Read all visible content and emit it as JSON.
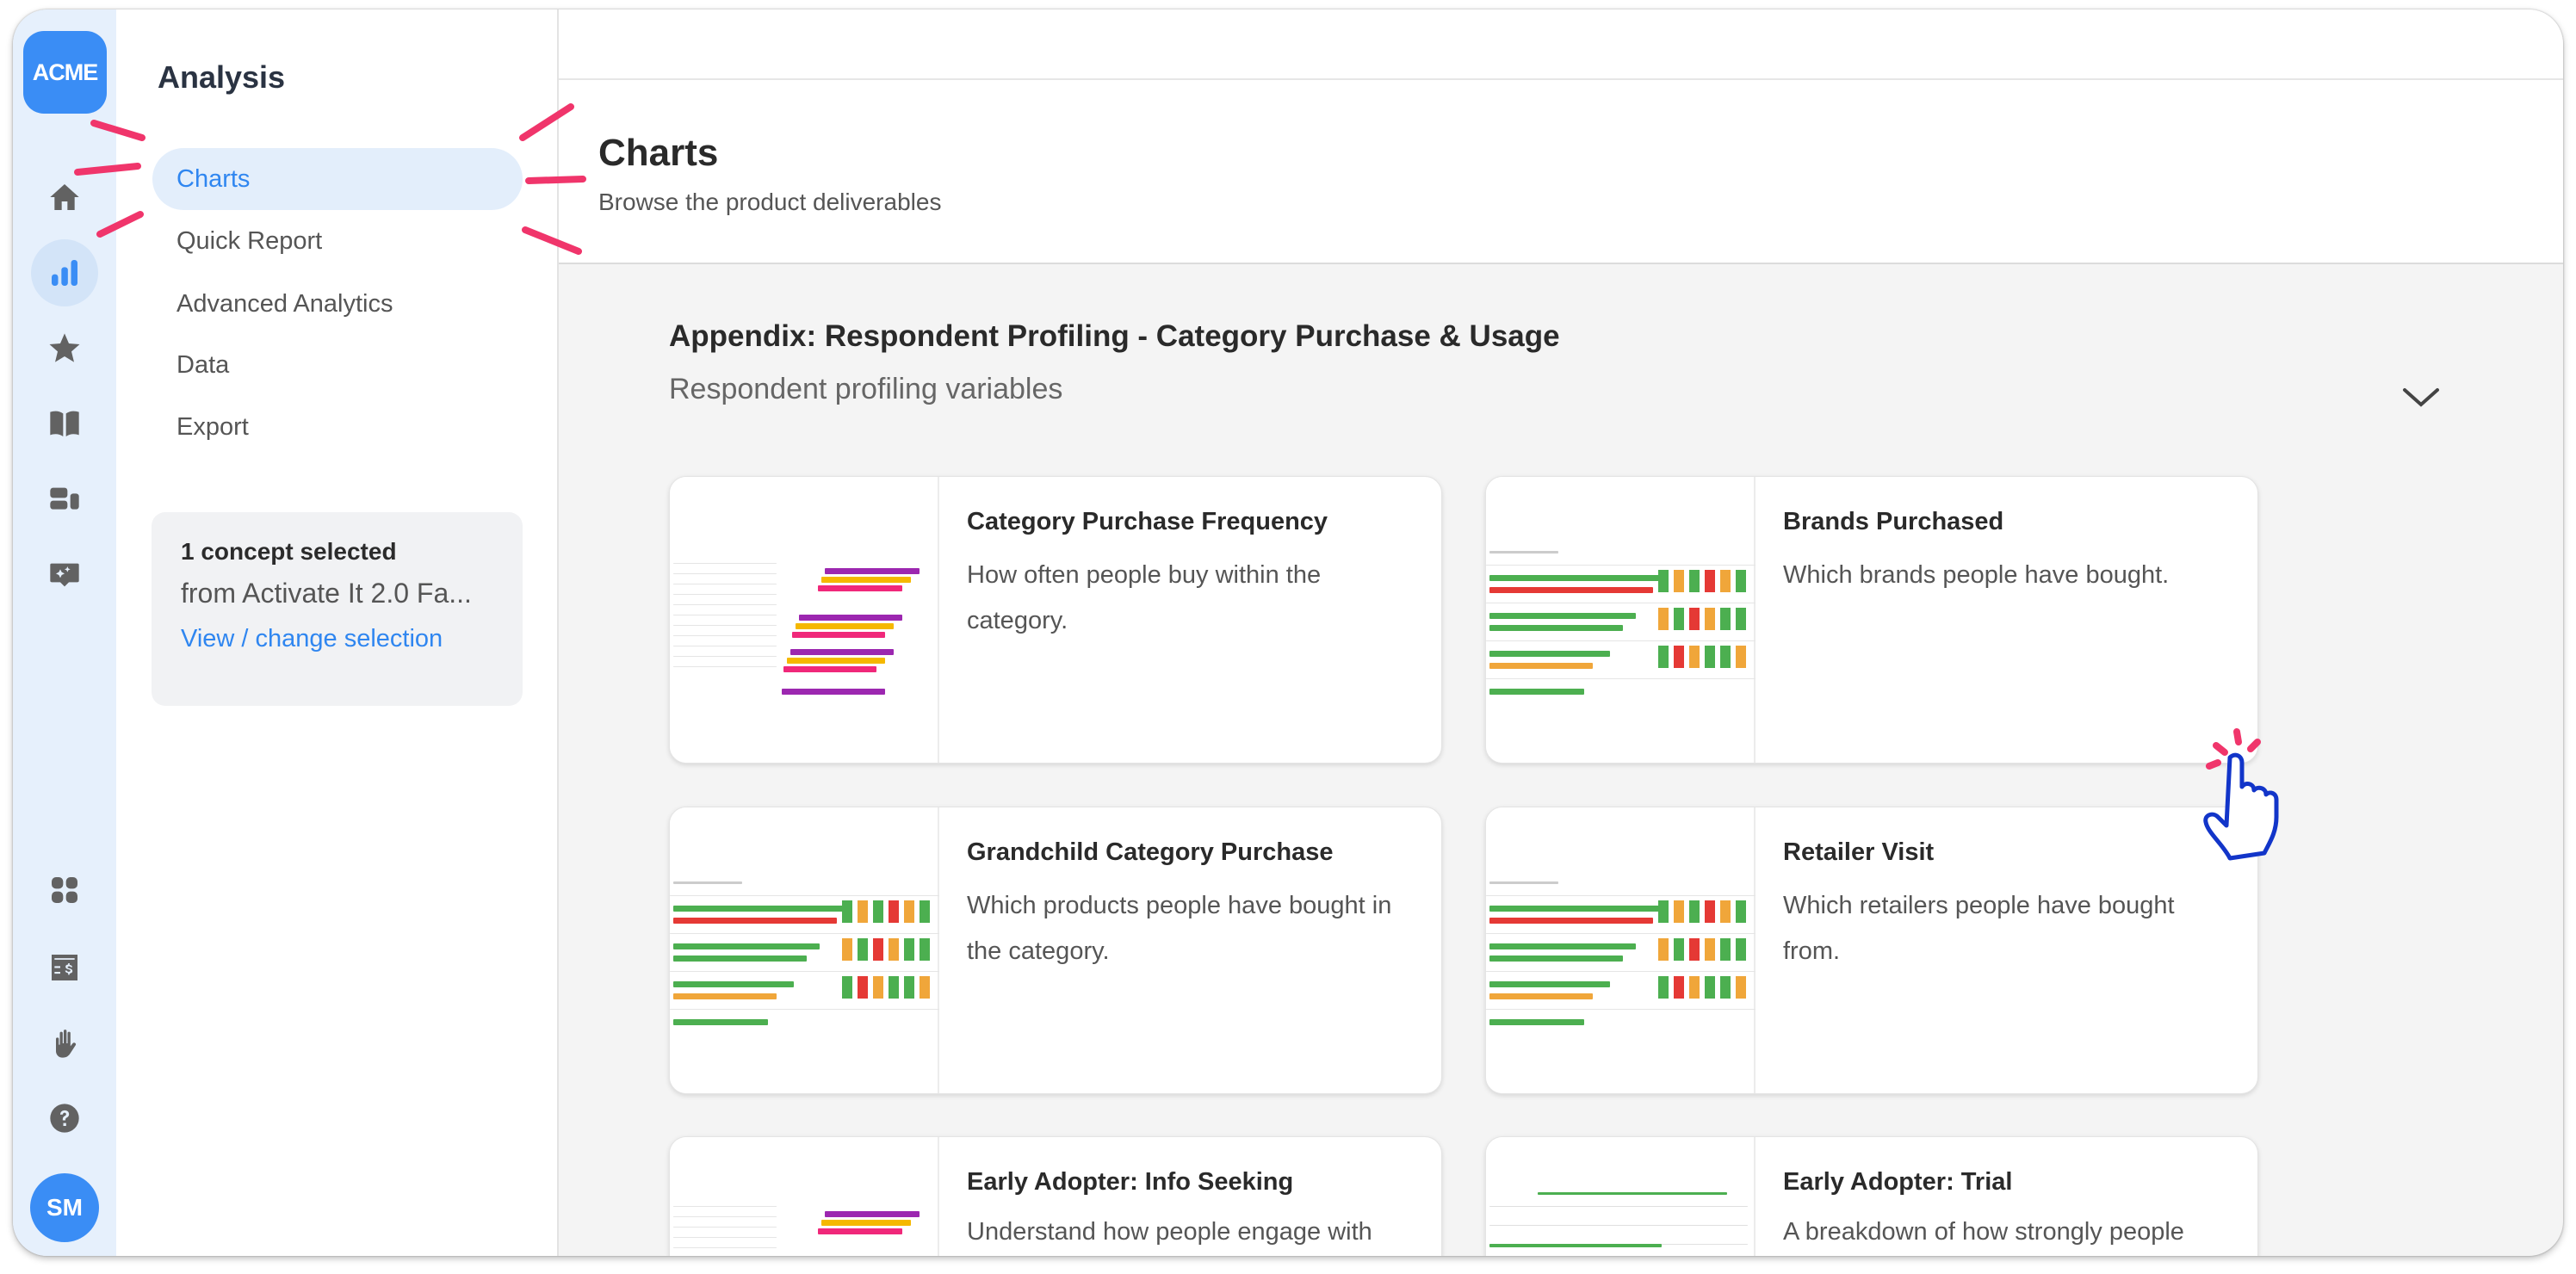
{
  "rail": {
    "logo": "ACME",
    "avatar": "SM",
    "icons": [
      "home-icon",
      "charts-icon",
      "star-icon",
      "book-icon",
      "dashboard-icon",
      "ai-chat-icon"
    ],
    "bottom_icons": [
      "apps-icon",
      "billing-icon",
      "hand-icon",
      "help-icon"
    ]
  },
  "nav": {
    "title": "Analysis",
    "items": [
      {
        "label": "Charts",
        "active": true
      },
      {
        "label": "Quick Report"
      },
      {
        "label": "Advanced Analytics"
      },
      {
        "label": "Data"
      },
      {
        "label": "Export"
      }
    ],
    "concept": {
      "title": "1 concept selected",
      "source": "from Activate It 2.0 Fa...",
      "link": "View / change selection"
    }
  },
  "header": {
    "title": "Charts",
    "subtitle": "Browse the product deliverables"
  },
  "section": {
    "title": "Appendix: Respondent Profiling - Category Purchase & Usage",
    "subtitle": "Respondent profiling variables"
  },
  "cards": [
    {
      "title": "Category Purchase Frequency",
      "desc": "How often people buy within the category.",
      "thumb": "hbars"
    },
    {
      "title": "Brands Purchased",
      "desc": "Which brands people have bought.",
      "thumb": "grid"
    },
    {
      "title": "Grandchild Category Purchase",
      "desc": "Which products people have bought in the category.",
      "thumb": "grid"
    },
    {
      "title": "Retailer Visit",
      "desc": "Which retailers people have bought from.",
      "thumb": "grid"
    },
    {
      "title": "Early Adopter: Info Seeking",
      "desc": "Understand how people engage with",
      "thumb": "hbars"
    },
    {
      "title": "Early Adopter: Trial",
      "desc": "A breakdown of how strongly people",
      "thumb": "dist"
    }
  ],
  "colors": {
    "accent": "#3a8df5",
    "annotation": "#f0356b",
    "purple": "#9c27b0",
    "yellow": "#f5b800",
    "pink": "#f0287a",
    "green": "#4caf50",
    "red": "#e53935",
    "orange": "#f0a63a"
  }
}
